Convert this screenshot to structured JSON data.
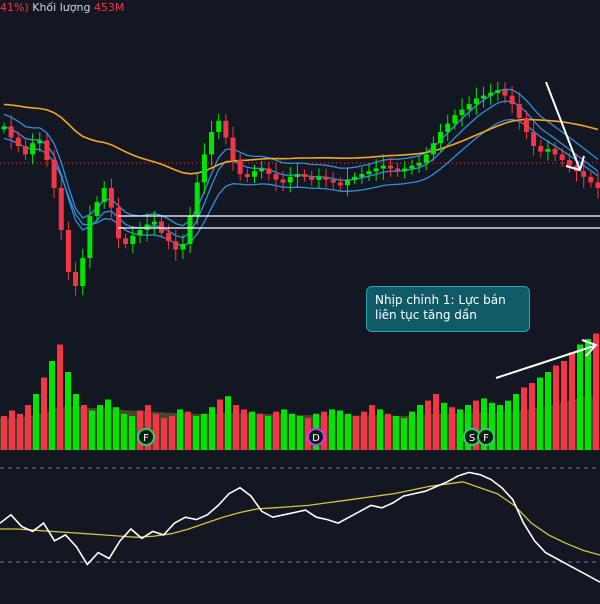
{
  "header": {
    "pct_fragment": "41%)",
    "volume_label": "Khối lượng",
    "volume_value": "453M"
  },
  "annotation": {
    "line1": "Nhịp chỉnh 1: Lực bán",
    "line2": "liên tục tăng dần"
  },
  "event_markers": [
    "F",
    "D",
    "S",
    "F"
  ],
  "colors": {
    "background": "#131722",
    "up": "#00e600",
    "down": "#f23645",
    "ema_band": "#2f8ee0",
    "ema_long": "#f5a623",
    "volume_ma": "#a89a3c",
    "rsi_line": "#ffffff",
    "rsi_signal": "#d4c440",
    "annotation_bg": "#0f5a67",
    "arrow": "#ffffff"
  },
  "chart_data": [
    {
      "type": "candlestick",
      "price_panel": true,
      "candle_trend": [
        0.62,
        0.58,
        0.55,
        0.52,
        0.56,
        0.57,
        0.5,
        0.4,
        0.25,
        0.1,
        0.05,
        0.15,
        0.3,
        0.35,
        0.4,
        0.33,
        0.22,
        0.2,
        0.23,
        0.25,
        0.27,
        0.28,
        0.24,
        0.21,
        0.18,
        0.2,
        0.3,
        0.42,
        0.52,
        0.6,
        0.64,
        0.58,
        0.5,
        0.45,
        0.44,
        0.46,
        0.47,
        0.45,
        0.43,
        0.42,
        0.44,
        0.45,
        0.44,
        0.43,
        0.44,
        0.43,
        0.42,
        0.41,
        0.43,
        0.44,
        0.45,
        0.46,
        0.47,
        0.48,
        0.47,
        0.46,
        0.47,
        0.48,
        0.49,
        0.52,
        0.56,
        0.6,
        0.63,
        0.66,
        0.68,
        0.7,
        0.72,
        0.73,
        0.74,
        0.75,
        0.73,
        0.7,
        0.65,
        0.6,
        0.55,
        0.53,
        0.54,
        0.52,
        0.5,
        0.48,
        0.46,
        0.44,
        0.42,
        0.4
      ],
      "support_lines": 2
    },
    {
      "type": "bar",
      "volume_panel": true,
      "volume_trend": [
        0.2,
        0.25,
        0.22,
        0.3,
        0.4,
        0.55,
        0.7,
        0.85,
        0.6,
        0.4,
        0.3,
        0.25,
        0.3,
        0.35,
        0.28,
        0.22,
        0.2,
        0.25,
        0.3,
        0.22,
        0.18,
        0.2,
        0.26,
        0.24,
        0.2,
        0.22,
        0.28,
        0.35,
        0.38,
        0.3,
        0.26,
        0.24,
        0.22,
        0.2,
        0.24,
        0.26,
        0.22,
        0.2,
        0.18,
        0.22,
        0.24,
        0.26,
        0.25,
        0.22,
        0.2,
        0.24,
        0.3,
        0.26,
        0.22,
        0.2,
        0.18,
        0.24,
        0.3,
        0.34,
        0.4,
        0.32,
        0.28,
        0.26,
        0.3,
        0.34,
        0.36,
        0.32,
        0.3,
        0.34,
        0.4,
        0.46,
        0.5,
        0.55,
        0.6,
        0.66,
        0.7,
        0.78,
        0.85,
        0.9,
        0.95
      ]
    },
    {
      "type": "line",
      "oscillator_panel": true,
      "rsi_trend": [
        0.55,
        0.62,
        0.52,
        0.48,
        0.55,
        0.4,
        0.45,
        0.35,
        0.2,
        0.3,
        0.25,
        0.4,
        0.5,
        0.42,
        0.48,
        0.45,
        0.55,
        0.6,
        0.58,
        0.62,
        0.7,
        0.8,
        0.85,
        0.78,
        0.65,
        0.6,
        0.62,
        0.64,
        0.66,
        0.6,
        0.58,
        0.55,
        0.6,
        0.65,
        0.7,
        0.68,
        0.72,
        0.78,
        0.8,
        0.82,
        0.86,
        0.9,
        0.95,
        0.98,
        0.96,
        0.92,
        0.85,
        0.75,
        0.55,
        0.4,
        0.3,
        0.25,
        0.2,
        0.15,
        0.1,
        0.05
      ],
      "signal_trend": [
        0.5,
        0.5,
        0.49,
        0.48,
        0.47,
        0.46,
        0.45,
        0.44,
        0.43,
        0.44,
        0.46,
        0.5,
        0.55,
        0.6,
        0.64,
        0.67,
        0.68,
        0.69,
        0.7,
        0.72,
        0.74,
        0.76,
        0.78,
        0.8,
        0.83,
        0.86,
        0.88,
        0.9,
        0.85,
        0.8,
        0.7,
        0.55,
        0.45,
        0.38,
        0.32,
        0.28
      ]
    }
  ]
}
